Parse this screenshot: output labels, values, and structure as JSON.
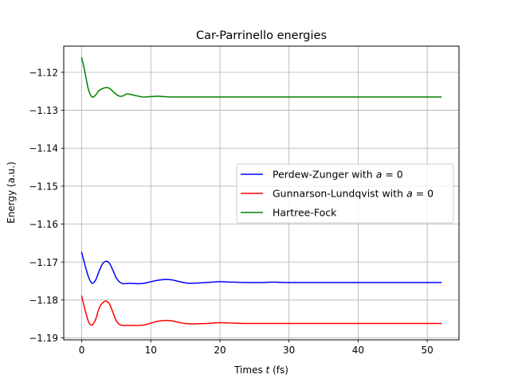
{
  "chart_data": {
    "type": "line",
    "title": "Car-Parrinello energies",
    "xlabel": "Times t (fs)",
    "ylabel": "Energy (a.u.)",
    "xlim": [
      -2.6,
      54.6
    ],
    "ylim": [
      -1.1905,
      -1.1131
    ],
    "x_ticks": [
      0,
      10,
      20,
      30,
      40,
      50
    ],
    "x_tick_labels": [
      "0",
      "10",
      "20",
      "30",
      "40",
      "50"
    ],
    "y_ticks": [
      -1.19,
      -1.18,
      -1.17,
      -1.16,
      -1.15,
      -1.14,
      -1.13,
      -1.12
    ],
    "y_tick_labels": [
      "−1.19",
      "−1.18",
      "−1.17",
      "−1.16",
      "−1.15",
      "−1.14",
      "−1.13",
      "−1.12"
    ],
    "grid": true,
    "legend_position": "center-right",
    "series": [
      {
        "name": "Perdew-Zunger with a = 0",
        "legend_parts": [
          "Perdew-Zunger with ",
          "a",
          " = 0"
        ],
        "color": "#0000ff",
        "x": [
          0,
          0.5,
          1,
          1.5,
          2,
          2.5,
          3,
          3.5,
          4,
          4.5,
          5,
          5.5,
          6,
          7,
          8,
          9,
          10,
          11,
          12,
          13,
          14,
          15,
          16,
          18,
          20,
          22,
          24,
          26,
          28,
          30,
          35,
          40,
          45,
          52
        ],
        "y": [
          -1.1675,
          -1.171,
          -1.174,
          -1.1756,
          -1.1748,
          -1.1725,
          -1.1705,
          -1.1698,
          -1.1703,
          -1.1721,
          -1.1742,
          -1.1753,
          -1.1757,
          -1.1756,
          -1.1757,
          -1.1756,
          -1.1752,
          -1.1748,
          -1.1746,
          -1.1747,
          -1.1751,
          -1.1755,
          -1.1756,
          -1.1754,
          -1.1752,
          -1.1753,
          -1.1754,
          -1.1754,
          -1.1753,
          -1.1754,
          -1.1754,
          -1.1754,
          -1.1754,
          -1.1754
        ]
      },
      {
        "name": "Gunnarson-Lundqvist with a = 0",
        "legend_parts": [
          "Gunnarson-Lundqvist with ",
          "a",
          " = 0"
        ],
        "color": "#ff0000",
        "x": [
          0,
          0.5,
          1,
          1.5,
          2,
          2.5,
          3,
          3.5,
          4,
          4.5,
          5,
          5.5,
          6,
          7,
          8,
          9,
          10,
          11,
          12,
          13,
          14,
          15,
          16,
          18,
          20,
          22,
          24,
          26,
          28,
          30,
          35,
          40,
          45,
          52
        ],
        "y": [
          -1.179,
          -1.1827,
          -1.1858,
          -1.1866,
          -1.1852,
          -1.1823,
          -1.1808,
          -1.1803,
          -1.181,
          -1.1832,
          -1.1855,
          -1.1865,
          -1.1867,
          -1.1867,
          -1.1867,
          -1.1866,
          -1.1861,
          -1.1856,
          -1.1854,
          -1.1855,
          -1.1859,
          -1.1862,
          -1.1863,
          -1.1862,
          -1.186,
          -1.1861,
          -1.1862,
          -1.1862,
          -1.1862,
          -1.1862,
          -1.1862,
          -1.1862,
          -1.1862,
          -1.1862
        ]
      },
      {
        "name": "Hartree-Fock",
        "legend_parts": [
          "Hartree-Fock"
        ],
        "color": "#008000",
        "x": [
          0,
          0.3,
          0.6,
          1,
          1.5,
          2,
          2.5,
          3,
          3.5,
          4,
          4.5,
          5,
          5.5,
          6,
          6.5,
          7,
          7.5,
          8,
          8.5,
          9,
          10,
          11,
          12,
          13,
          14,
          16,
          18,
          20,
          25,
          30,
          40,
          52
        ],
        "y": [
          -1.1162,
          -1.1185,
          -1.1212,
          -1.1247,
          -1.1265,
          -1.126,
          -1.1248,
          -1.1243,
          -1.124,
          -1.1242,
          -1.125,
          -1.1258,
          -1.1263,
          -1.1262,
          -1.1257,
          -1.1258,
          -1.126,
          -1.1262,
          -1.1264,
          -1.1265,
          -1.1264,
          -1.1263,
          -1.1264,
          -1.1265,
          -1.1265,
          -1.1265,
          -1.1265,
          -1.1265,
          -1.1265,
          -1.1265,
          -1.1265,
          -1.1265
        ]
      }
    ]
  }
}
